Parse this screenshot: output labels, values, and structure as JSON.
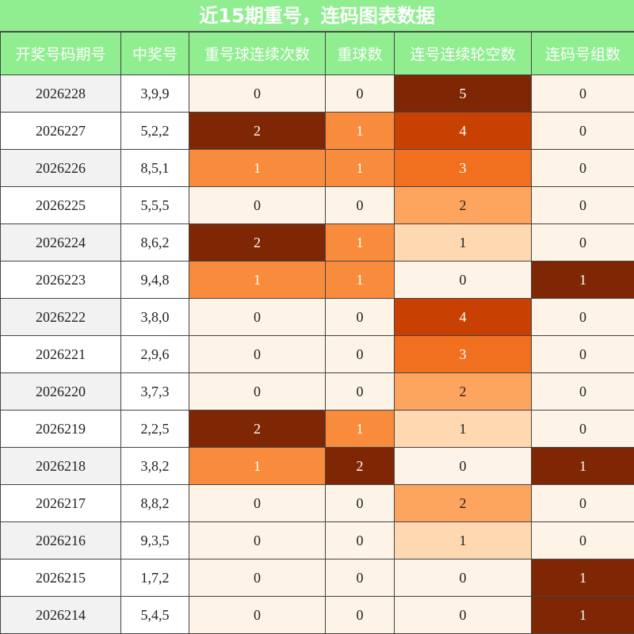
{
  "title": "近15期重号，连码图表数据",
  "table": {
    "headers": [
      "开奖号码期号",
      "中奖号",
      "重号球连续次数",
      "重球数",
      "连号连续轮空数",
      "连码号组数"
    ],
    "rows": [
      [
        "2026228",
        "3,9,9",
        0,
        0,
        5,
        0
      ],
      [
        "2026227",
        "5,2,2",
        2,
        1,
        4,
        0
      ],
      [
        "2026226",
        "8,5,1",
        1,
        1,
        3,
        0
      ],
      [
        "2026225",
        "5,5,5",
        0,
        0,
        2,
        0
      ],
      [
        "2026224",
        "8,6,2",
        2,
        1,
        1,
        0
      ],
      [
        "2026223",
        "9,4,8",
        1,
        1,
        0,
        1
      ],
      [
        "2026222",
        "3,8,0",
        0,
        0,
        4,
        0
      ],
      [
        "2026221",
        "2,9,6",
        0,
        0,
        3,
        0
      ],
      [
        "2026220",
        "3,7,3",
        0,
        0,
        2,
        0
      ],
      [
        "2026219",
        "2,2,5",
        2,
        1,
        1,
        0
      ],
      [
        "2026218",
        "3,8,2",
        1,
        2,
        0,
        1
      ],
      [
        "2026217",
        "8,8,2",
        0,
        0,
        2,
        0
      ],
      [
        "2026216",
        "9,3,5",
        0,
        0,
        1,
        0
      ],
      [
        "2026215",
        "1,7,2",
        0,
        0,
        0,
        1
      ],
      [
        "2026214",
        "5,4,5",
        0,
        0,
        0,
        1
      ]
    ]
  }
}
